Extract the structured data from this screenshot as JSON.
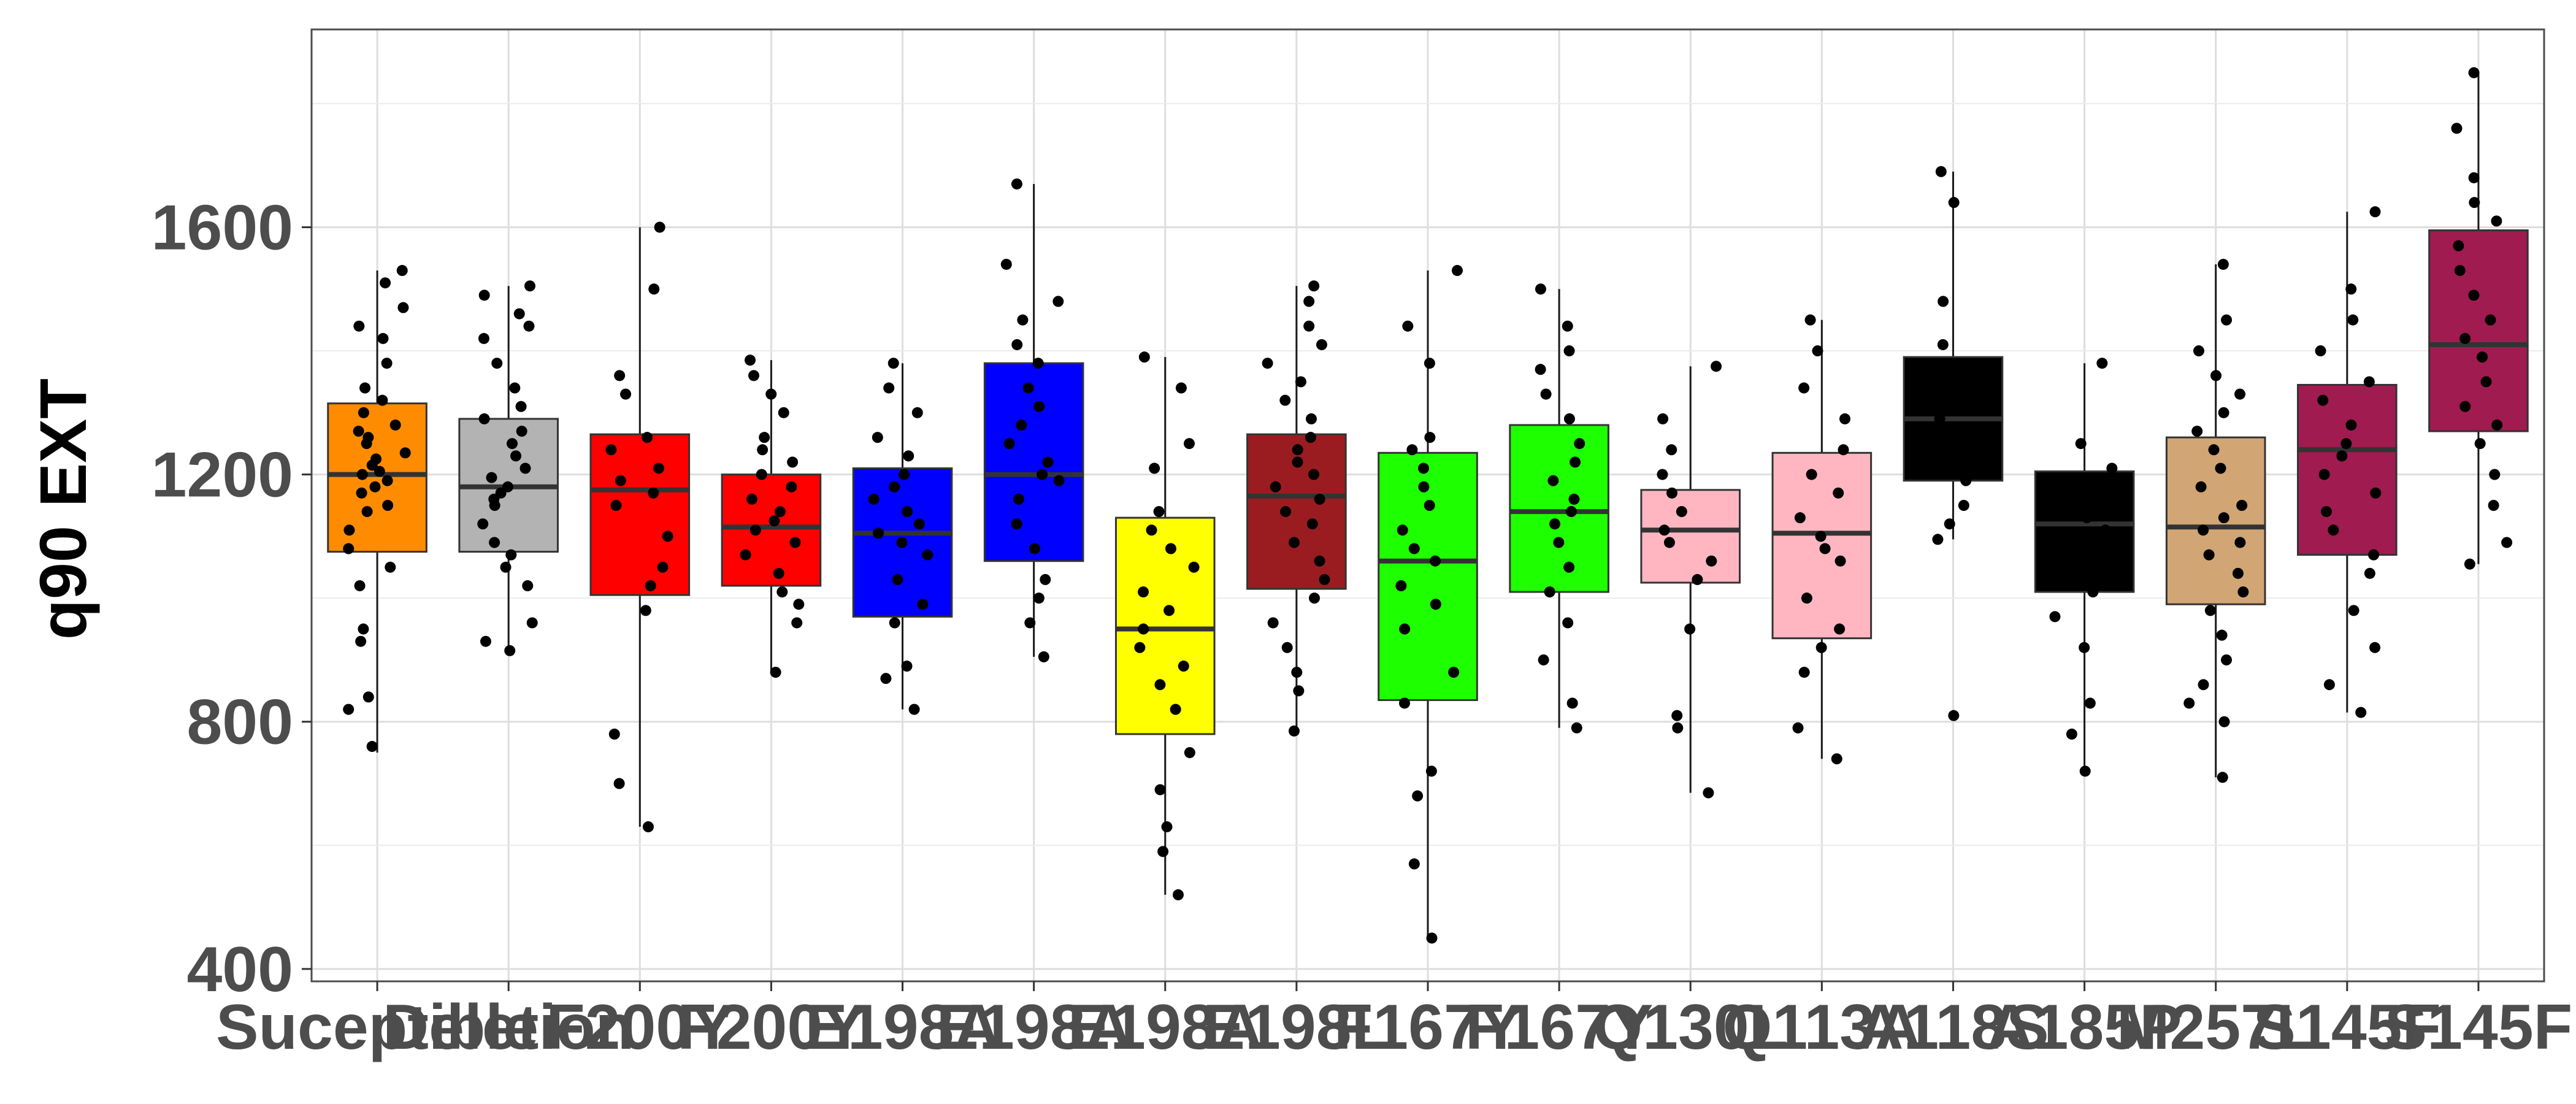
{
  "chart_data": {
    "type": "boxplot",
    "title": "",
    "xlabel": "",
    "ylabel": "q90 EXT",
    "ylim": [
      380,
      1920
    ],
    "yticks": [
      400,
      800,
      1200,
      1600
    ],
    "grid": true,
    "legend": "none",
    "categories": [
      "Suceptible",
      "Deletion",
      "F200Y",
      "F200Y",
      "E198A",
      "E198A",
      "E198A",
      "E198L",
      "F167Y",
      "F167Y",
      "Q130L",
      "Q113A",
      "A118S",
      "A185P",
      "M257L",
      "S145F",
      "S145F"
    ],
    "boxes": [
      {
        "category": "Suceptible",
        "color": "#FF8C00",
        "q1": 1075,
        "median": 1200,
        "q3": 1315,
        "whisker_low": 750,
        "whisker_high": 1530
      },
      {
        "category": "Deletion",
        "color": "#B3B3B3",
        "q1": 1075,
        "median": 1180,
        "q3": 1290,
        "whisker_low": 915,
        "whisker_high": 1505
      },
      {
        "category": "F200Y",
        "color": "#FF0000",
        "q1": 1005,
        "median": 1175,
        "q3": 1265,
        "whisker_low": 630,
        "whisker_high": 1600
      },
      {
        "category": "F200Y",
        "color": "#FF0000",
        "q1": 1020,
        "median": 1115,
        "q3": 1200,
        "whisker_low": 880,
        "whisker_high": 1385
      },
      {
        "category": "E198A",
        "color": "#0000FF",
        "q1": 970,
        "median": 1105,
        "q3": 1210,
        "whisker_low": 820,
        "whisker_high": 1380
      },
      {
        "category": "E198A",
        "color": "#0000FF",
        "q1": 1060,
        "median": 1200,
        "q3": 1380,
        "whisker_low": 905,
        "whisker_high": 1670
      },
      {
        "category": "E198A",
        "color": "#FFFF00",
        "q1": 780,
        "median": 950,
        "q3": 1130,
        "whisker_low": 520,
        "whisker_high": 1390
      },
      {
        "category": "E198L",
        "color": "#9B1C20",
        "q1": 1015,
        "median": 1165,
        "q3": 1265,
        "whisker_low": 785,
        "whisker_high": 1505
      },
      {
        "category": "F167Y",
        "color": "#1EFF00",
        "q1": 835,
        "median": 1060,
        "q3": 1235,
        "whisker_low": 450,
        "whisker_high": 1530
      },
      {
        "category": "F167Y",
        "color": "#1EFF00",
        "q1": 1010,
        "median": 1140,
        "q3": 1280,
        "whisker_low": 790,
        "whisker_high": 1500
      },
      {
        "category": "Q130L",
        "color": "#FFB6C1",
        "q1": 1025,
        "median": 1110,
        "q3": 1175,
        "whisker_low": 685,
        "whisker_high": 1375
      },
      {
        "category": "Q113A",
        "color": "#FFB6C1",
        "q1": 935,
        "median": 1105,
        "q3": 1235,
        "whisker_low": 740,
        "whisker_high": 1450
      },
      {
        "category": "A118S",
        "color": "#000000",
        "q1": 1190,
        "median": 1290,
        "q3": 1390,
        "whisker_low": 1095,
        "whisker_high": 1690
      },
      {
        "category": "A185P",
        "color": "#000000",
        "q1": 1010,
        "median": 1120,
        "q3": 1205,
        "whisker_low": 720,
        "whisker_high": 1380
      },
      {
        "category": "M257L",
        "color": "#D2A574",
        "q1": 990,
        "median": 1115,
        "q3": 1260,
        "whisker_low": 710,
        "whisker_high": 1540
      },
      {
        "category": "S145F",
        "color": "#A01B50",
        "q1": 1070,
        "median": 1240,
        "q3": 1345,
        "whisker_low": 815,
        "whisker_high": 1625
      },
      {
        "category": "S145F",
        "color": "#A01B50",
        "q1": 1270,
        "median": 1410,
        "q3": 1595,
        "whisker_low": 1055,
        "whisker_high": 1850
      }
    ],
    "points": [
      [
        760,
        820,
        840,
        930,
        950,
        1020,
        1050,
        1080,
        1110,
        1140,
        1150,
        1170,
        1180,
        1190,
        1200,
        1205,
        1215,
        1225,
        1235,
        1250,
        1260,
        1270,
        1280,
        1300,
        1320,
        1340,
        1380,
        1420,
        1440,
        1470,
        1510,
        1530
      ],
      [
        915,
        930,
        960,
        1020,
        1050,
        1070,
        1090,
        1120,
        1150,
        1160,
        1170,
        1180,
        1195,
        1210,
        1230,
        1250,
        1270,
        1290,
        1310,
        1340,
        1380,
        1420,
        1440,
        1460,
        1490,
        1505
      ],
      [
        630,
        700,
        780,
        980,
        1020,
        1050,
        1100,
        1150,
        1170,
        1190,
        1210,
        1240,
        1260,
        1330,
        1360,
        1500,
        1600
      ],
      [
        880,
        960,
        990,
        1010,
        1040,
        1070,
        1090,
        1110,
        1125,
        1140,
        1160,
        1180,
        1200,
        1220,
        1240,
        1260,
        1300,
        1330,
        1360,
        1385
      ],
      [
        820,
        870,
        890,
        960,
        990,
        1030,
        1070,
        1090,
        1105,
        1120,
        1140,
        1160,
        1180,
        1200,
        1230,
        1260,
        1300,
        1340,
        1380
      ],
      [
        905,
        960,
        1000,
        1030,
        1080,
        1120,
        1160,
        1190,
        1200,
        1220,
        1250,
        1280,
        1310,
        1340,
        1380,
        1410,
        1450,
        1480,
        1540,
        1670
      ],
      [
        520,
        590,
        630,
        690,
        750,
        820,
        860,
        890,
        920,
        950,
        980,
        1010,
        1050,
        1080,
        1110,
        1140,
        1210,
        1250,
        1340,
        1390
      ],
      [
        785,
        850,
        880,
        920,
        960,
        1000,
        1030,
        1060,
        1090,
        1120,
        1140,
        1160,
        1180,
        1200,
        1220,
        1240,
        1260,
        1290,
        1320,
        1350,
        1380,
        1410,
        1440,
        1480,
        1505
      ],
      [
        450,
        570,
        680,
        720,
        830,
        880,
        950,
        990,
        1020,
        1060,
        1080,
        1110,
        1150,
        1180,
        1210,
        1240,
        1260,
        1380,
        1440,
        1530
      ],
      [
        790,
        830,
        900,
        960,
        1010,
        1050,
        1090,
        1120,
        1140,
        1160,
        1190,
        1220,
        1250,
        1290,
        1330,
        1370,
        1400,
        1440,
        1500
      ],
      [
        685,
        790,
        810,
        950,
        1030,
        1060,
        1090,
        1110,
        1140,
        1170,
        1200,
        1240,
        1290,
        1375
      ],
      [
        740,
        790,
        880,
        920,
        950,
        1000,
        1060,
        1080,
        1100,
        1130,
        1170,
        1200,
        1240,
        1290,
        1340,
        1400,
        1450
      ],
      [
        810,
        1095,
        1120,
        1150,
        1190,
        1230,
        1260,
        1290,
        1320,
        1360,
        1410,
        1480,
        1640,
        1690
      ],
      [
        720,
        780,
        830,
        920,
        970,
        1010,
        1050,
        1080,
        1110,
        1130,
        1150,
        1170,
        1190,
        1210,
        1250,
        1380
      ],
      [
        710,
        800,
        830,
        860,
        900,
        940,
        980,
        1010,
        1040,
        1070,
        1090,
        1110,
        1130,
        1150,
        1180,
        1210,
        1240,
        1270,
        1300,
        1330,
        1360,
        1400,
        1450,
        1540
      ],
      [
        815,
        860,
        920,
        980,
        1040,
        1070,
        1110,
        1140,
        1170,
        1200,
        1230,
        1250,
        1280,
        1320,
        1350,
        1400,
        1450,
        1500,
        1625
      ],
      [
        1055,
        1090,
        1150,
        1200,
        1250,
        1280,
        1310,
        1350,
        1390,
        1420,
        1450,
        1490,
        1530,
        1570,
        1610,
        1640,
        1680,
        1760,
        1850
      ]
    ]
  }
}
